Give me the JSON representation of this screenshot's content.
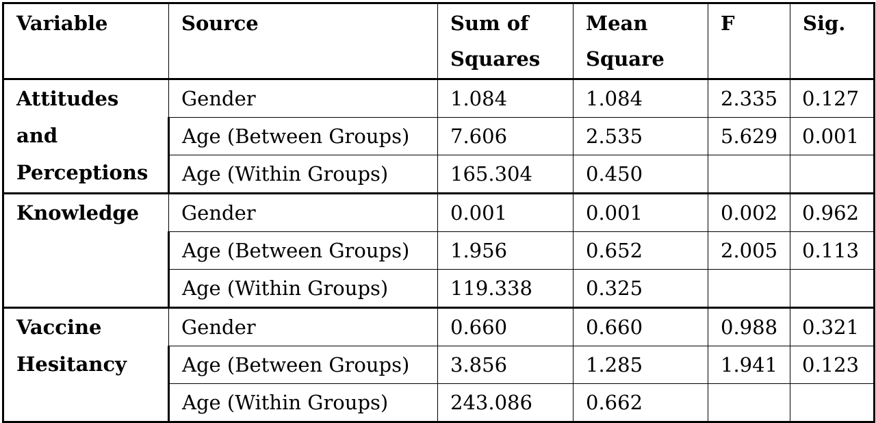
{
  "headers": {
    "variable": "Variable",
    "source": "Source",
    "sum_of_squares": "Sum of Squares",
    "mean_square": "Mean Square",
    "f": "F",
    "sig": "Sig."
  },
  "groups": [
    {
      "variable_lines": [
        "Attitudes",
        "and",
        "Perceptions"
      ],
      "rows": [
        {
          "source": "Gender",
          "ss": "1.084",
          "ms": "1.084",
          "f": "2.335",
          "sig": "0.127"
        },
        {
          "source": "Age (Between Groups)",
          "ss": "7.606",
          "ms": "2.535",
          "f": "5.629",
          "sig": "0.001"
        },
        {
          "source": "Age (Within Groups)",
          "ss": "165.304",
          "ms": "0.450",
          "f": "",
          "sig": ""
        }
      ]
    },
    {
      "variable_lines": [
        "Knowledge"
      ],
      "rows": [
        {
          "source": "Gender",
          "ss": "0.001",
          "ms": "0.001",
          "f": "0.002",
          "sig": "0.962"
        },
        {
          "source": "Age (Between Groups)",
          "ss": "1.956",
          "ms": "0.652",
          "f": "2.005",
          "sig": "0.113"
        },
        {
          "source": "Age (Within Groups)",
          "ss": "119.338",
          "ms": "0.325",
          "f": "",
          "sig": ""
        }
      ]
    },
    {
      "variable_lines": [
        "Vaccine",
        "Hesitancy"
      ],
      "rows": [
        {
          "source": "Gender",
          "ss": "0.660",
          "ms": "0.660",
          "f": "0.988",
          "sig": "0.321"
        },
        {
          "source": "Age (Between Groups)",
          "ss": "3.856",
          "ms": "1.285",
          "f": "1.941",
          "sig": "0.123"
        },
        {
          "source": "Age (Within Groups)",
          "ss": "243.086",
          "ms": "0.662",
          "f": "",
          "sig": ""
        }
      ]
    }
  ]
}
